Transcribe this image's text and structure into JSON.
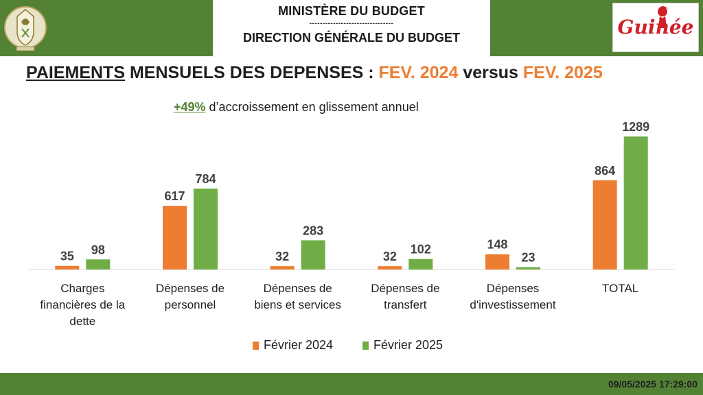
{
  "header": {
    "ministry": "MINISTÈRE DU BUDGET",
    "dashes": "--------------------------------",
    "direction": "DIRECTION GÉNÉRALE DU BUDGET",
    "brand": "Guinée"
  },
  "title": {
    "part1": "PAIEMENTS",
    "part2": " MENSUELS DES DEPENSES : ",
    "part3": "FEV. 2024",
    "part4": " versus ",
    "part5": "FEV. 2025"
  },
  "subtitle": {
    "pct": "+49%",
    "text": " d’accroissement en glissement annuel"
  },
  "colors": {
    "header_green": "#548235",
    "series_2024": "#ed7d31",
    "series_2025": "#70ad47"
  },
  "chart_data": {
    "type": "bar",
    "categories": [
      [
        "Charges",
        "financières de la",
        "dette"
      ],
      [
        "Dépenses de",
        "personnel"
      ],
      [
        "Dépenses de",
        "biens et services"
      ],
      [
        "Dépenses de",
        "transfert"
      ],
      [
        "Dépenses",
        "d'investissement"
      ],
      [
        "TOTAL"
      ]
    ],
    "series": [
      {
        "name": "Février 2024",
        "values": [
          35,
          617,
          32,
          32,
          148,
          864
        ],
        "color": "#ed7d31"
      },
      {
        "name": "Février 2025",
        "values": [
          98,
          784,
          283,
          102,
          23,
          1289
        ],
        "color": "#70ad47"
      }
    ],
    "ylim": [
      0,
      1289
    ],
    "grid": false,
    "legend": "bottom"
  },
  "footer": {
    "timestamp": "09/05/2025 17:29:00"
  }
}
